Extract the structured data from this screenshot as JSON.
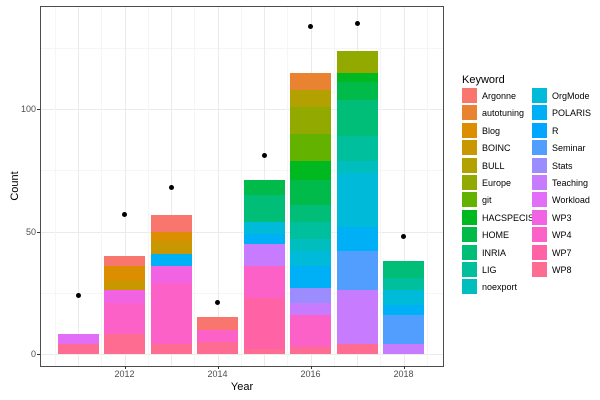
{
  "figure": {
    "background": "#ffffff",
    "dot_color": "#000000"
  },
  "axes": {
    "x_label": "Year",
    "y_label": "Count",
    "x_tick_labels": [
      "2012",
      "2014",
      "2016",
      "2018"
    ],
    "y_tick_labels": [
      "0",
      "50",
      "100"
    ]
  },
  "legend": {
    "title": "Keyword",
    "position": "right",
    "column1": [
      "Argonne",
      "autotuning",
      "Blog",
      "BOINC",
      "BULL",
      "Europe",
      "git",
      "HACSPECIS",
      "HOME",
      "INRIA",
      "LIG",
      "noexport"
    ],
    "column2": [
      "OrgMode",
      "POLARIS",
      "R",
      "Seminar",
      "Stats",
      "Teaching",
      "Workload",
      "WP3",
      "WP4",
      "WP7",
      "WP8"
    ]
  },
  "chart_data": {
    "type": "bar",
    "stacked": true,
    "title": "",
    "xlabel": "Year",
    "ylabel": "Count",
    "x_ticks": [
      2012,
      2014,
      2016,
      2018
    ],
    "y_major_ticks": [
      0,
      50,
      100
    ],
    "y_minor_ticks": [
      25,
      75,
      125
    ],
    "ylim": [
      0,
      140
    ],
    "grid": true,
    "legend_title": "Keyword",
    "legend_position": "right",
    "keywords_in_legend_order": [
      "Argonne",
      "autotuning",
      "Blog",
      "BOINC",
      "BULL",
      "Europe",
      "git",
      "HACSPECIS",
      "HOME",
      "INRIA",
      "LIG",
      "noexport",
      "OrgMode",
      "POLARIS",
      "R",
      "Seminar",
      "Stats",
      "Teaching",
      "Workload",
      "WP3",
      "WP4",
      "WP7",
      "WP8"
    ],
    "colors": {
      "Argonne": "#F8766D",
      "autotuning": "#EA8331",
      "Blog": "#DB8E00",
      "BOINC": "#C99800",
      "BULL": "#B2A100",
      "Europe": "#92AA00",
      "git": "#64B200",
      "HACSPECIS": "#00B81F",
      "HOME": "#00BA49",
      "INRIA": "#00BD78",
      "LIG": "#00BF9D",
      "noexport": "#00BEBE",
      "OrgMode": "#00BADA",
      "POLARIS": "#00B0F6",
      "R": "#00A6FF",
      "Seminar": "#529EFF",
      "Stats": "#9C8DFF",
      "Teaching": "#C77CFF",
      "Workload": "#E26EF7",
      "WP3": "#F263E3",
      "WP4": "#FB61C6",
      "WP7": "#FF63A6",
      "WP8": "#FF6C91"
    },
    "bars": [
      {
        "year": 2011,
        "total": 8,
        "dot": 24,
        "segments": [
          {
            "keyword": "Workload",
            "count": 4
          },
          {
            "keyword": "WP8",
            "count": 4
          }
        ]
      },
      {
        "year": 2012,
        "total": 40,
        "dot": 57,
        "segments": [
          {
            "keyword": "Argonne",
            "count": 4
          },
          {
            "keyword": "Blog",
            "count": 6
          },
          {
            "keyword": "BOINC",
            "count": 4
          },
          {
            "keyword": "WP3",
            "count": 5
          },
          {
            "keyword": "WP4",
            "count": 13
          },
          {
            "keyword": "WP8",
            "count": 8
          }
        ]
      },
      {
        "year": 2013,
        "total": 57,
        "dot": 68,
        "segments": [
          {
            "keyword": "Argonne",
            "count": 7
          },
          {
            "keyword": "Blog",
            "count": 4
          },
          {
            "keyword": "BOINC",
            "count": 5
          },
          {
            "keyword": "POLARIS",
            "count": 5
          },
          {
            "keyword": "WP3",
            "count": 7
          },
          {
            "keyword": "WP4",
            "count": 25
          },
          {
            "keyword": "WP8",
            "count": 4
          }
        ]
      },
      {
        "year": 2014,
        "total": 15,
        "dot": 21,
        "segments": [
          {
            "keyword": "Argonne",
            "count": 5
          },
          {
            "keyword": "WP4",
            "count": 5
          },
          {
            "keyword": "WP8",
            "count": 5
          }
        ]
      },
      {
        "year": 2015,
        "total": 71,
        "dot": 81,
        "segments": [
          {
            "keyword": "HOME",
            "count": 6
          },
          {
            "keyword": "INRIA",
            "count": 11
          },
          {
            "keyword": "OrgMode",
            "count": 5
          },
          {
            "keyword": "POLARIS",
            "count": 4
          },
          {
            "keyword": "Teaching",
            "count": 9
          },
          {
            "keyword": "WP4",
            "count": 13
          },
          {
            "keyword": "WP7",
            "count": 21
          },
          {
            "keyword": "WP8",
            "count": 2
          }
        ]
      },
      {
        "year": 2016,
        "total": 115,
        "dot": 134,
        "segments": [
          {
            "keyword": "autotuning",
            "count": 7
          },
          {
            "keyword": "BULL",
            "count": 7
          },
          {
            "keyword": "Europe",
            "count": 11
          },
          {
            "keyword": "git",
            "count": 11
          },
          {
            "keyword": "HACSPECIS",
            "count": 8
          },
          {
            "keyword": "HOME",
            "count": 10
          },
          {
            "keyword": "INRIA",
            "count": 7
          },
          {
            "keyword": "LIG",
            "count": 7
          },
          {
            "keyword": "noexport",
            "count": 5
          },
          {
            "keyword": "OrgMode",
            "count": 6
          },
          {
            "keyword": "POLARIS",
            "count": 9
          },
          {
            "keyword": "Stats",
            "count": 6
          },
          {
            "keyword": "Teaching",
            "count": 5
          },
          {
            "keyword": "WP4",
            "count": 13
          },
          {
            "keyword": "WP8",
            "count": 3
          }
        ]
      },
      {
        "year": 2017,
        "total": 124,
        "dot": 135,
        "segments": [
          {
            "keyword": "Europe",
            "count": 9
          },
          {
            "keyword": "HACSPECIS",
            "count": 4
          },
          {
            "keyword": "HOME",
            "count": 7
          },
          {
            "keyword": "INRIA",
            "count": 15
          },
          {
            "keyword": "LIG",
            "count": 10
          },
          {
            "keyword": "noexport",
            "count": 5
          },
          {
            "keyword": "OrgMode",
            "count": 22
          },
          {
            "keyword": "POLARIS",
            "count": 10
          },
          {
            "keyword": "Seminar",
            "count": 16
          },
          {
            "keyword": "Teaching",
            "count": 22
          },
          {
            "keyword": "WP8",
            "count": 4
          }
        ]
      },
      {
        "year": 2018,
        "total": 38,
        "dot": 48,
        "segments": [
          {
            "keyword": "INRIA",
            "count": 7
          },
          {
            "keyword": "LIG",
            "count": 5
          },
          {
            "keyword": "OrgMode",
            "count": 6
          },
          {
            "keyword": "POLARIS",
            "count": 4
          },
          {
            "keyword": "Seminar",
            "count": 12
          },
          {
            "keyword": "Teaching",
            "count": 4
          }
        ]
      }
    ]
  }
}
